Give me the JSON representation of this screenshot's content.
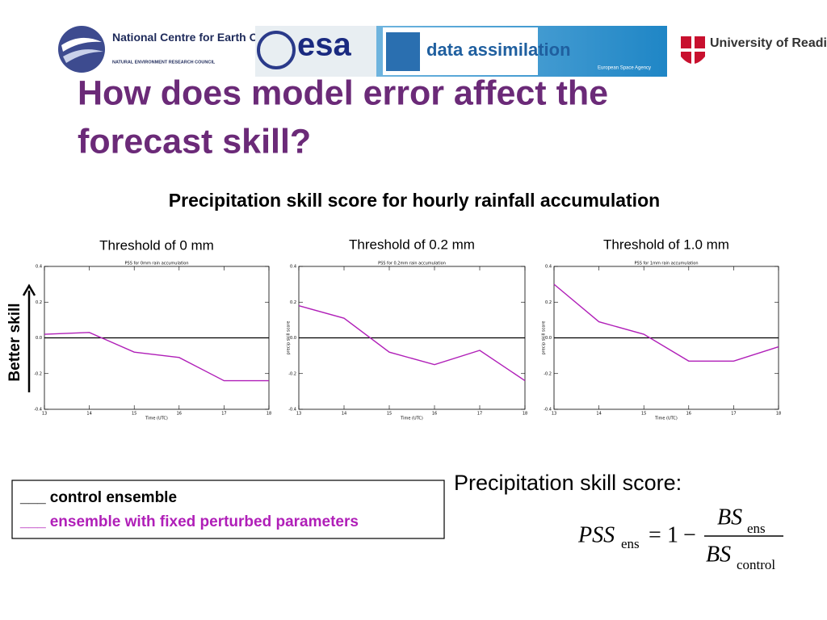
{
  "logos": {
    "nceo": "National Centre for Earth Observation",
    "nerc": "NATURAL ENVIRONMENT RESEARCH COUNCIL",
    "esa": "esa",
    "data_assimilation": "data assimilation",
    "esa_full": "European Space Agency",
    "reading": "University of Reading"
  },
  "slide_title": [
    "How does model error affect the",
    "forecast skill?"
  ],
  "section_heading": "Precipitation skill score for hourly rainfall accumulation",
  "axis_note": "Better skill",
  "chart_data": [
    {
      "type": "line",
      "heading": "Threshold of 0 mm",
      "title": "PSS for 0mm rain accumulation",
      "x_label": "Time (UTC)",
      "x": [
        13,
        14,
        15,
        16,
        17,
        18
      ],
      "series": [
        {
          "name": "control ensemble",
          "color": "#000000",
          "values": [
            0,
            0,
            0,
            0,
            0,
            0
          ]
        },
        {
          "name": "ensemble with fixed perturbed parameters",
          "color": "#b01fb8",
          "values": [
            0.02,
            0.03,
            -0.08,
            -0.11,
            -0.24,
            -0.24
          ]
        }
      ],
      "xlim": [
        13,
        18
      ],
      "xticks": [
        13,
        14,
        15,
        16,
        17,
        18
      ],
      "ylim": [
        -0.4,
        0.4
      ],
      "yticks": [
        -0.4,
        -0.2,
        {
          "value": 0,
          "label": "0.0"
        },
        0.2,
        0.4
      ]
    },
    {
      "type": "line",
      "heading": "Threshold of 0.2 mm",
      "title": "PSS for 0.2mm rain accumulation",
      "x_label": "Time (UTC)",
      "y_label": "precip skill score",
      "x": [
        13,
        14,
        15,
        16,
        17,
        18
      ],
      "series": [
        {
          "color": "#000000",
          "values": [
            0,
            0,
            0,
            0,
            0,
            0
          ]
        },
        {
          "color": "#b01fb8",
          "values": [
            0.18,
            0.11,
            -0.08,
            -0.15,
            -0.07,
            -0.24
          ]
        }
      ],
      "xlim": [
        13,
        18
      ],
      "xticks": [
        13,
        14,
        15,
        16,
        17,
        18
      ],
      "ylim": [
        -0.4,
        0.4
      ],
      "yticks": [
        -0.4,
        -0.2,
        {
          "value": 0,
          "label": "0.0"
        },
        0.2,
        0.4
      ]
    },
    {
      "type": "line",
      "heading": "Threshold of 1.0 mm",
      "title": "PSS for 1mm rain accumulation",
      "x_label": "Time (UTC)",
      "y_label": "precip skill score",
      "x": [
        13,
        14,
        15,
        16,
        17,
        18
      ],
      "series": [
        {
          "color": "#000000",
          "values": [
            0,
            0,
            0,
            0,
            0,
            0
          ]
        },
        {
          "color": "#b01fb8",
          "values": [
            0.3,
            0.09,
            0.02,
            -0.13,
            -0.13,
            -0.05
          ]
        }
      ],
      "xlim": [
        13,
        18
      ],
      "xticks": [
        13,
        14,
        15,
        16,
        17,
        18
      ],
      "ylim": [
        -0.4,
        0.4
      ],
      "yticks": [
        -0.4,
        -0.2,
        {
          "value": 0,
          "label": "0.0"
        },
        0.2,
        0.4
      ]
    }
  ],
  "legend_marker": "___",
  "formula": {
    "caption": "Precipitation skill score:",
    "lhs": "PSS",
    "lhs_sub": "ens",
    "equals": "=",
    "one": "1",
    "minus": "−",
    "num": "BS",
    "num_sub": "ens",
    "den": "BS",
    "den_sub": "control"
  }
}
